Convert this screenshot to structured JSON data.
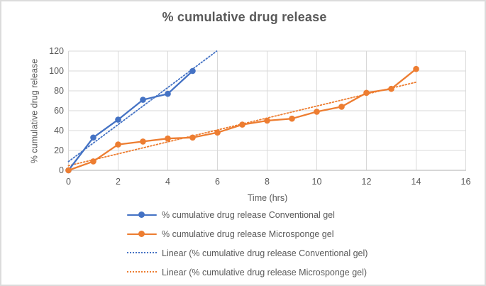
{
  "chart": {
    "title": "% cumulative drug release",
    "x_axis": {
      "label": "Time (hrs)"
    },
    "y_axis": {
      "label": "% cumulative drug release"
    }
  },
  "chart_data": {
    "type": "line",
    "title": "% cumulative drug release",
    "xlabel": "Time (hrs)",
    "ylabel": "% cumulative drug release",
    "xlim": [
      0,
      16
    ],
    "ylim": [
      0,
      120
    ],
    "xticks": [
      0,
      2,
      4,
      6,
      8,
      10,
      12,
      14,
      16
    ],
    "yticks": [
      0,
      20,
      40,
      60,
      80,
      100,
      120
    ],
    "grid": true,
    "legend_position": "bottom",
    "series": [
      {
        "name": "% cumulative drug release Conventional gel",
        "color": "#4472C4",
        "marker": "circle",
        "x": [
          0,
          1,
          2,
          3,
          4,
          5
        ],
        "values": [
          0,
          33,
          51,
          71,
          77,
          100
        ]
      },
      {
        "name": "% cumulative drug release Microsponge gel",
        "color": "#ED7D31",
        "marker": "circle",
        "x": [
          0,
          1,
          2,
          3,
          4,
          5,
          6,
          7,
          8,
          9,
          10,
          11,
          12,
          13,
          14
        ],
        "values": [
          0,
          9,
          26,
          29,
          32,
          33,
          38,
          46,
          50,
          52,
          59,
          64,
          78,
          82,
          102
        ]
      }
    ],
    "trendlines": [
      {
        "name": "Linear (% cumulative drug release Conventional gel)",
        "color": "#4472C4",
        "style": "dotted",
        "x_start": 0,
        "y_start": 8.8,
        "x_end": 5.97,
        "y_end": 120
      },
      {
        "name": "Linear (% cumulative drug release Microsponge gel)",
        "color": "#ED7D31",
        "style": "dotted",
        "x_start": 0,
        "y_start": 4.6,
        "x_end": 14,
        "y_end": 88.7
      }
    ]
  },
  "colors": {
    "series_blue": "#4472C4",
    "series_orange": "#ED7D31",
    "gridline": "#D9D9D9",
    "axis_line": "#BFBFBF",
    "text": "#595959",
    "frame_border": "#DCDCDC"
  }
}
